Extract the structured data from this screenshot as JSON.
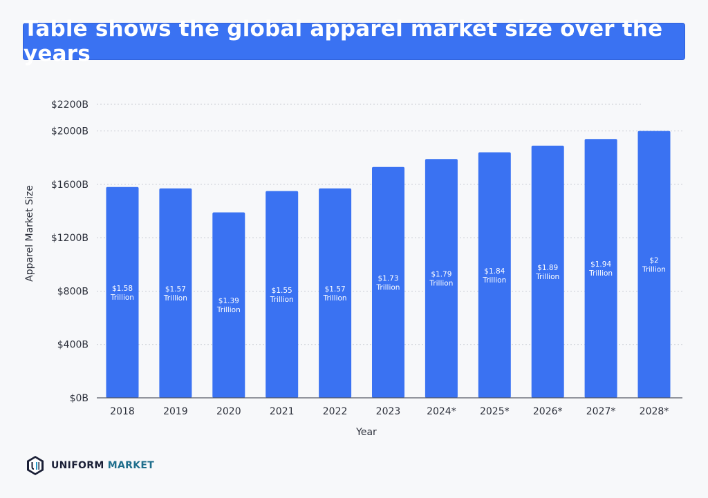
{
  "chart_data": {
    "type": "bar",
    "title": "Table shows the global apparel market size over the years",
    "xlabel": "Year",
    "ylabel": "Apparel Market Size",
    "categories": [
      "2018",
      "2019",
      "2020",
      "2021",
      "2022",
      "2023",
      "2024*",
      "2025*",
      "2026*",
      "2027*",
      "2028*"
    ],
    "values": [
      1580,
      1570,
      1390,
      1550,
      1570,
      1730,
      1790,
      1840,
      1890,
      1940,
      2000
    ],
    "value_unit": "B",
    "data_labels": [
      [
        "$1.58",
        "Trillion"
      ],
      [
        "$1.57",
        "Trillion"
      ],
      [
        "$1.39",
        "Trillion"
      ],
      [
        "$1.55",
        "Trillion"
      ],
      [
        "$1.57",
        "Trillion"
      ],
      [
        "$1.73",
        "Trillion"
      ],
      [
        "$1.79",
        "Trillion"
      ],
      [
        "$1.84",
        "Trillion"
      ],
      [
        "$1.89",
        "Trillion"
      ],
      [
        "$1.94",
        "Trillion"
      ],
      [
        "$2",
        "Trillion"
      ]
    ],
    "yticks": [
      0,
      400,
      800,
      1200,
      1600,
      2000,
      2200
    ],
    "ytick_labels": [
      "$0B",
      "$400B",
      "$800B",
      "$1200B",
      "$1600B",
      "$2000B",
      "$2200B"
    ],
    "ylim": [
      0,
      2200
    ],
    "grid": true,
    "legend": "none",
    "bar_color": "#3a72f2",
    "grid_color": "#c9ccd3",
    "text_color": "#2b2f3a"
  },
  "brand": {
    "logo_word1": "UNIFORM",
    "logo_word2": "MARKET",
    "logo_icon": "uniform-market-logo-icon"
  }
}
